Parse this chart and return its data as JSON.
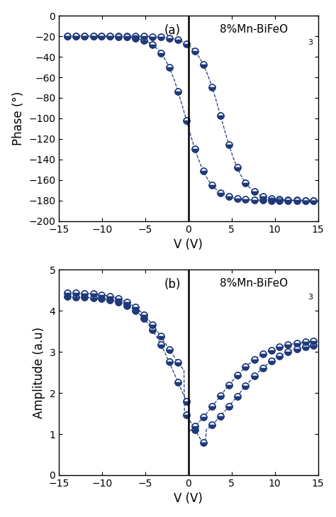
{
  "line_color": "#1f3a7a",
  "marker_face": "#1f3a7a",
  "background": "white",
  "phase_xlim": [
    -15,
    15
  ],
  "phase_ylim": [
    -200,
    0
  ],
  "phase_yticks": [
    0,
    -20,
    -40,
    -60,
    -80,
    -100,
    -120,
    -140,
    -160,
    -180,
    -200
  ],
  "phase_xticks": [
    -15,
    -10,
    -5,
    0,
    5,
    10,
    15
  ],
  "phase_ylabel": "Phase (°)",
  "phase_xlabel": "V (V)",
  "phase_label": "(a)",
  "phase_annotation": "8%Mn-BiFeO",
  "phase_annotation_sub": "3",
  "amp_xlim": [
    -15,
    15
  ],
  "amp_ylim": [
    0,
    5
  ],
  "amp_yticks": [
    0,
    1,
    2,
    3,
    4,
    5
  ],
  "amp_xticks": [
    -15,
    -10,
    -5,
    0,
    5,
    10,
    15
  ],
  "amp_ylabel": "Amplitude (a.u)",
  "amp_xlabel": "V (V)",
  "amp_label": "(b)",
  "amp_annotation": "8%Mn-BiFeO",
  "amp_annotation_sub": "3"
}
